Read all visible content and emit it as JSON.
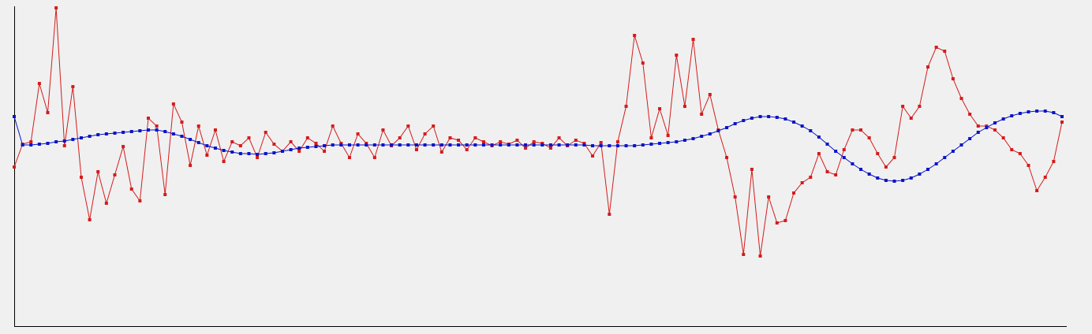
{
  "chart_data": {
    "type": "line",
    "x": [
      0,
      1,
      2,
      3,
      4,
      5,
      6,
      7,
      8,
      9,
      10,
      11,
      12,
      13,
      14,
      15,
      16,
      17,
      18,
      19,
      20,
      21,
      22,
      23,
      24,
      25,
      26,
      27,
      28,
      29,
      30,
      31,
      32,
      33,
      34,
      35,
      36,
      37,
      38,
      39,
      40,
      41,
      42,
      43,
      44,
      45,
      46,
      47,
      48,
      49,
      50,
      51,
      52,
      53,
      54,
      55,
      56,
      57,
      58,
      59,
      60,
      61,
      62,
      63,
      64,
      65,
      66,
      67,
      68,
      69,
      70,
      71,
      72,
      73,
      74,
      75,
      76,
      77,
      78,
      79,
      80,
      81,
      82,
      83,
      84,
      85,
      86,
      87,
      88,
      89,
      90,
      91,
      92,
      93,
      94,
      95,
      96,
      97,
      98,
      99,
      100,
      101,
      102,
      103,
      104,
      105,
      106,
      107,
      108,
      109,
      110,
      111,
      112,
      113,
      114,
      115,
      116,
      117,
      118,
      119,
      120,
      121,
      122,
      123,
      124,
      125
    ],
    "xlim": [
      0,
      125
    ],
    "ylim": [
      0,
      406
    ],
    "series": [
      {
        "color": "#d41c1c",
        "values": [
          202,
          231,
          234,
          308,
          271,
          404,
          229,
          304,
          189,
          135,
          196,
          156,
          192,
          228,
          174,
          159,
          264,
          254,
          167,
          282,
          259,
          204,
          254,
          217,
          249,
          209,
          234,
          229,
          239,
          214,
          246,
          231,
          222,
          234,
          222,
          239,
          232,
          222,
          254,
          232,
          214,
          244,
          232,
          214,
          249,
          229,
          239,
          254,
          224,
          244,
          254,
          221,
          239,
          236,
          224,
          239,
          234,
          229,
          234,
          231,
          236,
          226,
          234,
          232,
          226,
          239,
          229,
          236,
          232,
          216,
          233,
          142,
          234,
          279,
          369,
          334,
          239,
          276,
          242,
          344,
          279,
          364,
          269,
          294,
          249,
          214,
          164,
          91,
          199,
          89,
          164,
          131,
          134,
          169,
          182,
          189,
          219,
          196,
          192,
          224,
          249,
          249,
          239,
          219,
          202,
          214,
          279,
          264,
          279,
          329,
          354,
          349,
          314,
          289,
          269,
          254,
          254,
          249,
          239,
          224,
          219,
          204,
          172,
          189,
          209,
          259
        ]
      },
      {
        "color": "#0a14c8",
        "values": [
          266,
          230,
          230,
          231,
          232,
          234,
          235,
          237,
          239,
          241,
          243,
          244,
          245,
          246,
          247,
          248,
          249,
          249,
          247,
          244,
          241,
          237,
          233,
          229,
          226,
          223,
          221,
          219,
          219,
          218,
          219,
          220,
          222,
          224,
          226,
          227,
          228,
          229,
          230,
          230,
          230,
          230,
          230,
          230,
          230,
          230,
          230,
          230,
          230,
          230,
          230,
          230,
          230,
          230,
          230,
          230,
          230,
          230,
          230,
          230,
          230,
          230,
          230,
          230,
          230,
          230,
          230,
          230,
          230,
          229,
          229,
          229,
          229,
          229,
          229,
          230,
          231,
          232,
          233,
          234,
          236,
          238,
          241,
          244,
          248,
          252,
          257,
          261,
          264,
          266,
          266,
          265,
          263,
          259,
          254,
          248,
          240,
          231,
          222,
          214,
          206,
          199,
          193,
          188,
          185,
          184,
          185,
          188,
          193,
          199,
          206,
          214,
          222,
          230,
          238,
          246,
          252,
          258,
          263,
          267,
          270,
          272,
          273,
          273,
          271,
          266
        ]
      }
    ]
  }
}
